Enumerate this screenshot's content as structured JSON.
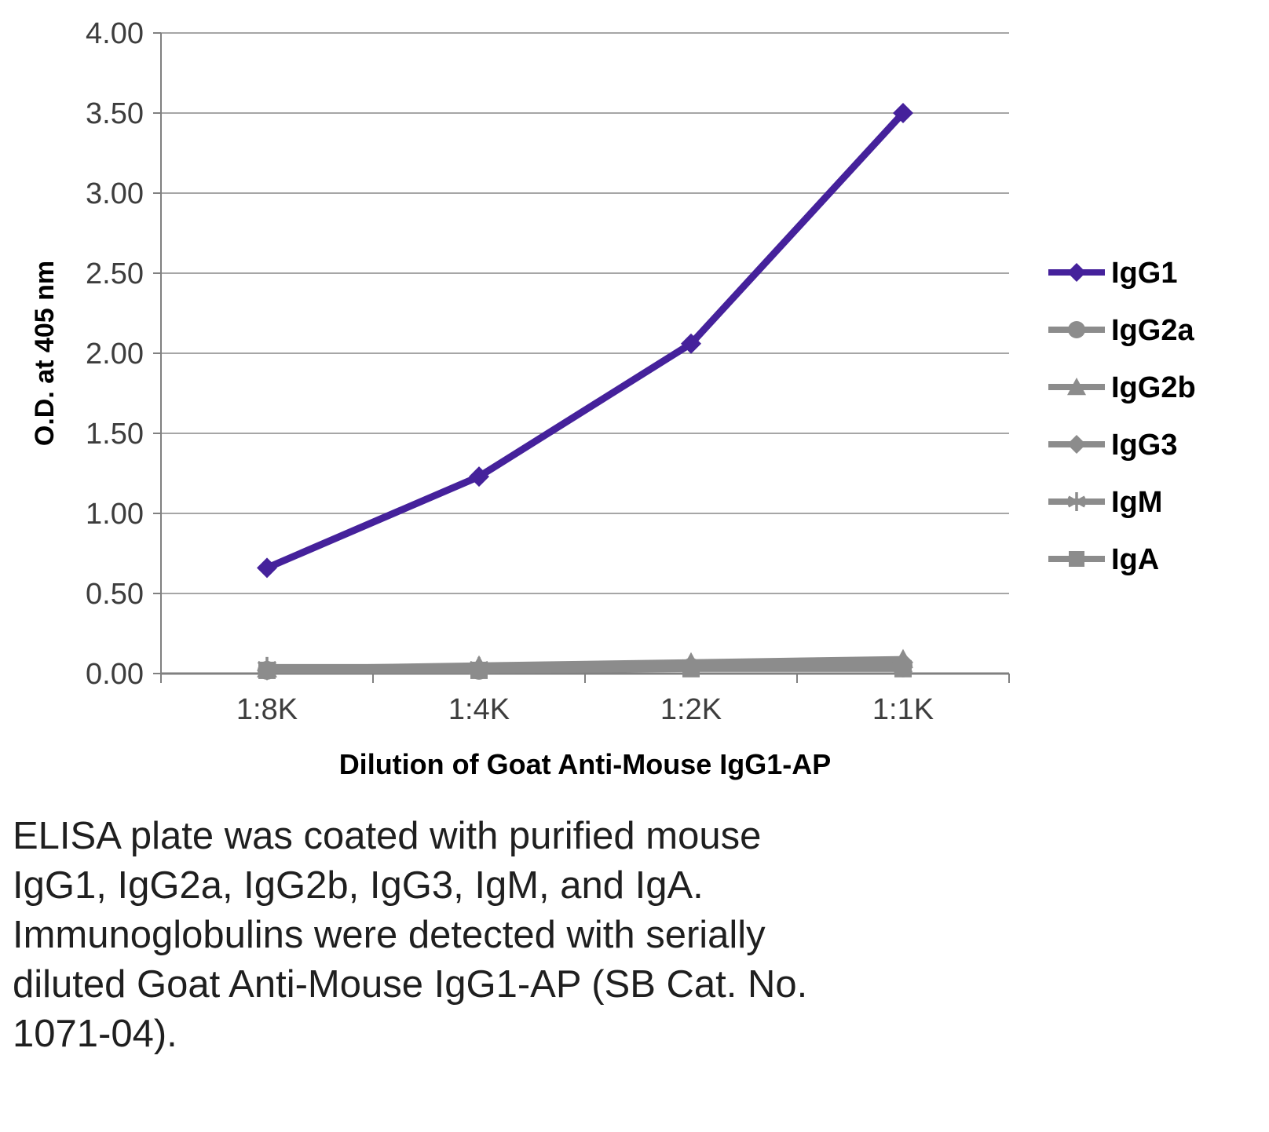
{
  "chart_data": {
    "type": "line",
    "title": "",
    "xlabel": "Dilution of Goat Anti-Mouse IgG1-AP",
    "ylabel": "O.D. at 405 nm",
    "categories": [
      "1:8K",
      "1:4K",
      "1:2K",
      "1:1K"
    ],
    "ylim": [
      0,
      4
    ],
    "ytick_step": 0.5,
    "ytick_labels": [
      "0.00",
      "0.50",
      "1.00",
      "1.50",
      "2.00",
      "2.50",
      "3.00",
      "3.50",
      "4.00"
    ],
    "grid": true,
    "legend_position": "right",
    "series": [
      {
        "name": "IgG1",
        "color": "#45219b",
        "marker": "diamond",
        "line_width": 9,
        "values": [
          0.66,
          1.23,
          2.06,
          3.5
        ]
      },
      {
        "name": "IgG2a",
        "color": "#8c8c8c",
        "marker": "circle",
        "line_width": 8,
        "values": [
          0.02,
          0.02,
          0.04,
          0.05
        ]
      },
      {
        "name": "IgG2b",
        "color": "#8c8c8c",
        "marker": "triangle",
        "line_width": 8,
        "values": [
          0.03,
          0.05,
          0.07,
          0.09
        ]
      },
      {
        "name": "IgG3",
        "color": "#8c8c8c",
        "marker": "diamond",
        "line_width": 8,
        "values": [
          0.02,
          0.03,
          0.05,
          0.07
        ]
      },
      {
        "name": "IgM",
        "color": "#8c8c8c",
        "marker": "asterisk",
        "line_width": 8,
        "values": [
          0.04,
          0.04,
          0.05,
          0.04
        ]
      },
      {
        "name": "IgA",
        "color": "#8c8c8c",
        "marker": "square",
        "line_width": 8,
        "values": [
          0.02,
          0.02,
          0.03,
          0.03
        ]
      }
    ]
  },
  "caption": {
    "lines": [
      "ELISA plate was coated with purified mouse",
      "IgG1, IgG2a, IgG2b, IgG3, IgM, and IgA.",
      "Immunoglobulins were detected with serially",
      "diluted Goat Anti-Mouse IgG1-AP (SB Cat. No.",
      "1071-04)."
    ]
  },
  "colors": {
    "accent": "#45219b",
    "series_gray": "#8c8c8c",
    "gridline": "#a6a6a6",
    "axis": "#808080",
    "tick_text": "#3d3d3d",
    "label_text": "#000000"
  }
}
